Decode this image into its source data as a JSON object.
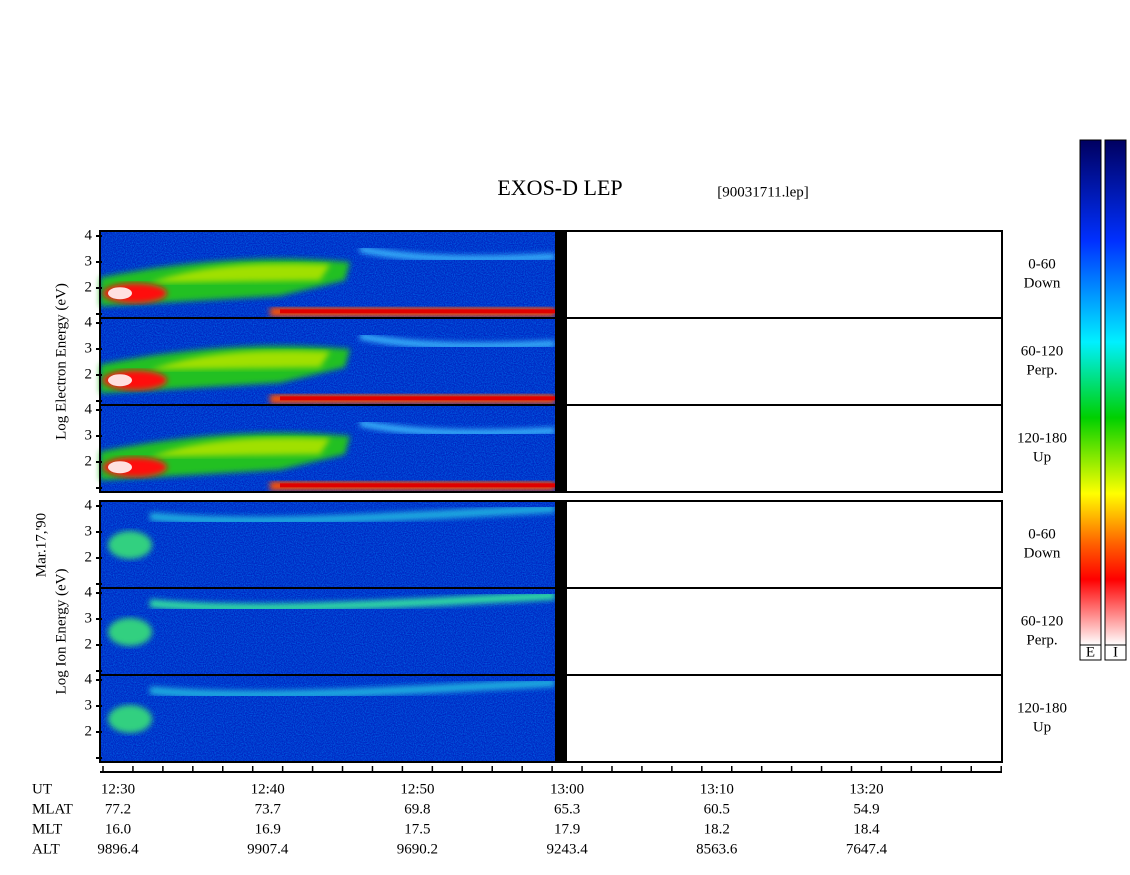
{
  "header": {
    "title": "EXOS-D LEP",
    "file": "[90031711.lep]"
  },
  "date": "Mar.17,'90",
  "groups": [
    {
      "label": "Log Electron Energy (eV)",
      "panels": [
        {
          "angle": "0-60",
          "direction": "Down"
        },
        {
          "angle": "60-120",
          "direction": "Perp."
        },
        {
          "angle": "120-180",
          "direction": "Up"
        }
      ]
    },
    {
      "label": "Log Ion Energy (eV)",
      "panels": [
        {
          "angle": "0-60",
          "direction": "Down"
        },
        {
          "angle": "60-120",
          "direction": "Perp."
        },
        {
          "angle": "120-180",
          "direction": "Up"
        }
      ]
    }
  ],
  "yticks": [
    "2",
    "3",
    "4"
  ],
  "orbit_rows": [
    {
      "name": "UT",
      "values": [
        "12:30",
        "12:40",
        "12:50",
        "13:00",
        "13:10",
        "13:20"
      ]
    },
    {
      "name": "MLAT",
      "values": [
        "77.2",
        "73.7",
        "69.8",
        "65.3",
        "60.5",
        "54.9"
      ]
    },
    {
      "name": "MLT",
      "values": [
        "16.0",
        "16.9",
        "17.5",
        "17.9",
        "18.2",
        "18.4"
      ]
    },
    {
      "name": "ALT",
      "values": [
        "9896.4",
        "9907.4",
        "9690.2",
        "9243.4",
        "8563.6",
        "7647.4"
      ]
    }
  ],
  "colorbar_labels": [
    "E",
    "I"
  ]
}
